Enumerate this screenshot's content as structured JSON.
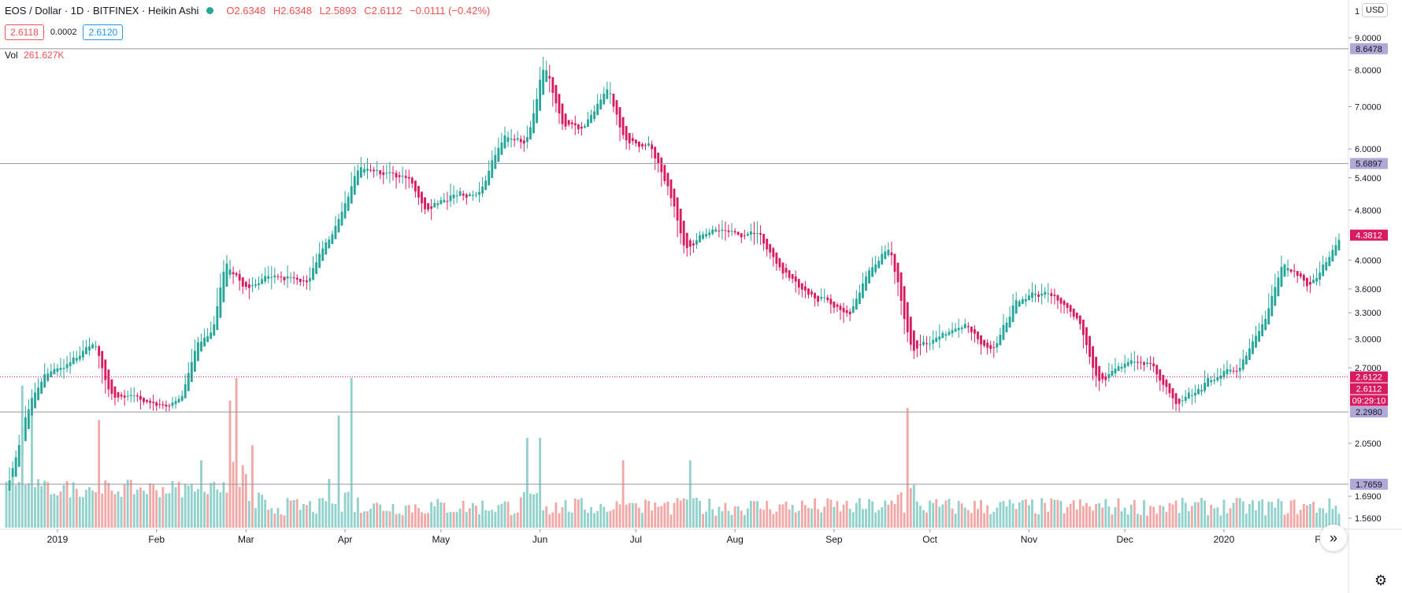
{
  "legend": {
    "symbol": "EOS / Dollar · 1D · BITFINEX · Heikin Ashi",
    "open": "O2.6348",
    "high": "H2.6348",
    "low": "L2.5893",
    "close": "C2.6112",
    "change": "−0.0111 (−0.42%)"
  },
  "price_boxes": {
    "sell": "2.6118",
    "spread": "0.0002",
    "buy": "2.6120"
  },
  "volume_legend": {
    "label": "Vol",
    "value": "261.627K"
  },
  "currency_button": "USD",
  "scroll_icon": "»",
  "settings_icon": "⚙",
  "colors": {
    "up": "#26a69a",
    "down": "#d81b60",
    "vol_up": "#93d2cc",
    "vol_down": "#f0a9a6",
    "level_badge": "#b2a8d8",
    "current_badge": "#d81b60"
  },
  "chart_data": {
    "type": "candlestick",
    "chart_style": "Heikin Ashi",
    "y_scale": "log",
    "ylim": [
      1.5,
      10.0
    ],
    "y_ticks": [
      {
        "value": 9.0,
        "label": "9.0000"
      },
      {
        "value": 8.0,
        "label": "8.0000"
      },
      {
        "value": 7.0,
        "label": "7.0000"
      },
      {
        "value": 6.0,
        "label": "6.0000"
      },
      {
        "value": 5.4,
        "label": "5.4000"
      },
      {
        "value": 4.8,
        "label": "4.8000"
      },
      {
        "value": 4.0,
        "label": "4.0000"
      },
      {
        "value": 3.6,
        "label": "3.6000"
      },
      {
        "value": 3.3,
        "label": "3.3000"
      },
      {
        "value": 3.0,
        "label": "3.0000"
      },
      {
        "value": 2.7,
        "label": "2.7000"
      },
      {
        "value": 2.05,
        "label": "2.0500"
      },
      {
        "value": 1.69,
        "label": "1.6900"
      },
      {
        "value": 1.56,
        "label": "1.5600"
      }
    ],
    "x_ticks": [
      {
        "date": "2019-01-01",
        "label": "2019"
      },
      {
        "date": "2019-02-01",
        "label": "Feb"
      },
      {
        "date": "2019-03-01",
        "label": "Mar"
      },
      {
        "date": "2019-04-01",
        "label": "Apr"
      },
      {
        "date": "2019-05-01",
        "label": "May"
      },
      {
        "date": "2019-06-01",
        "label": "Jun"
      },
      {
        "date": "2019-07-01",
        "label": "Jul"
      },
      {
        "date": "2019-08-01",
        "label": "Aug"
      },
      {
        "date": "2019-09-01",
        "label": "Sep"
      },
      {
        "date": "2019-10-01",
        "label": "Oct"
      },
      {
        "date": "2019-11-01",
        "label": "Nov"
      },
      {
        "date": "2019-12-01",
        "label": "Dec"
      },
      {
        "date": "2020-01-01",
        "label": "2020"
      },
      {
        "date": "2020-02-01",
        "label": "Feb"
      }
    ],
    "date_range": [
      "2018-12-16",
      "2020-02-06"
    ],
    "horizontal_levels": [
      {
        "value": 8.6478,
        "label": "8.6478"
      },
      {
        "value": 5.6897,
        "label": "5.6897"
      },
      {
        "value": 2.298,
        "label": "2.2980"
      },
      {
        "value": 1.7659,
        "label": "1.7659"
      }
    ],
    "current_price": {
      "value": 2.6122,
      "label": "2.6122",
      "style": "dotted"
    },
    "badges": [
      {
        "value": 4.3812,
        "label": "4.3812"
      },
      {
        "value": 2.6112,
        "label": "2.6112"
      }
    ],
    "countdown": "09:29:10",
    "anchor_prices": [
      {
        "date": "2018-12-16",
        "price": 1.75
      },
      {
        "date": "2018-12-22",
        "price": 2.3
      },
      {
        "date": "2018-12-28",
        "price": 2.65
      },
      {
        "date": "2019-01-05",
        "price": 2.75
      },
      {
        "date": "2019-01-12",
        "price": 2.95
      },
      {
        "date": "2019-01-17",
        "price": 2.45
      },
      {
        "date": "2019-01-25",
        "price": 2.42
      },
      {
        "date": "2019-02-02",
        "price": 2.35
      },
      {
        "date": "2019-02-08",
        "price": 2.4
      },
      {
        "date": "2019-02-13",
        "price": 2.95
      },
      {
        "date": "2019-02-18",
        "price": 3.05
      },
      {
        "date": "2019-02-22",
        "price": 3.95
      },
      {
        "date": "2019-02-28",
        "price": 3.6
      },
      {
        "date": "2019-03-10",
        "price": 3.8
      },
      {
        "date": "2019-03-20",
        "price": 3.7
      },
      {
        "date": "2019-03-28",
        "price": 4.5
      },
      {
        "date": "2019-04-05",
        "price": 5.6
      },
      {
        "date": "2019-04-12",
        "price": 5.5
      },
      {
        "date": "2019-04-20",
        "price": 5.4
      },
      {
        "date": "2019-04-26",
        "price": 4.8
      },
      {
        "date": "2019-05-05",
        "price": 5.1
      },
      {
        "date": "2019-05-12",
        "price": 5.0
      },
      {
        "date": "2019-05-20",
        "price": 6.3
      },
      {
        "date": "2019-05-27",
        "price": 6.1
      },
      {
        "date": "2019-06-02",
        "price": 8.1
      },
      {
        "date": "2019-06-08",
        "price": 6.5
      },
      {
        "date": "2019-06-14",
        "price": 6.5
      },
      {
        "date": "2019-06-22",
        "price": 7.5
      },
      {
        "date": "2019-06-27",
        "price": 6.2
      },
      {
        "date": "2019-07-05",
        "price": 6.0
      },
      {
        "date": "2019-07-10",
        "price": 5.3
      },
      {
        "date": "2019-07-16",
        "price": 4.2
      },
      {
        "date": "2019-07-24",
        "price": 4.5
      },
      {
        "date": "2019-07-30",
        "price": 4.4
      },
      {
        "date": "2019-08-08",
        "price": 4.4
      },
      {
        "date": "2019-08-16",
        "price": 3.8
      },
      {
        "date": "2019-08-26",
        "price": 3.5
      },
      {
        "date": "2019-09-05",
        "price": 3.25
      },
      {
        "date": "2019-09-11",
        "price": 3.8
      },
      {
        "date": "2019-09-18",
        "price": 4.15
      },
      {
        "date": "2019-09-25",
        "price": 2.85
      },
      {
        "date": "2019-10-02",
        "price": 3.0
      },
      {
        "date": "2019-10-12",
        "price": 3.15
      },
      {
        "date": "2019-10-20",
        "price": 2.85
      },
      {
        "date": "2019-10-28",
        "price": 3.5
      },
      {
        "date": "2019-11-08",
        "price": 3.55
      },
      {
        "date": "2019-11-16",
        "price": 3.2
      },
      {
        "date": "2019-11-22",
        "price": 2.55
      },
      {
        "date": "2019-11-30",
        "price": 2.75
      },
      {
        "date": "2019-12-08",
        "price": 2.75
      },
      {
        "date": "2019-12-17",
        "price": 2.35
      },
      {
        "date": "2019-12-28",
        "price": 2.6
      },
      {
        "date": "2020-01-05",
        "price": 2.7
      },
      {
        "date": "2020-01-14",
        "price": 3.3
      },
      {
        "date": "2020-01-19",
        "price": 3.95
      },
      {
        "date": "2020-01-27",
        "price": 3.6
      },
      {
        "date": "2020-02-06",
        "price": 4.35
      }
    ],
    "volume_spikes": [
      {
        "date": "2018-12-21",
        "level": 0.95
      },
      {
        "date": "2018-12-24",
        "level": 0.75
      },
      {
        "date": "2019-01-14",
        "level": 0.72
      },
      {
        "date": "2019-02-15",
        "level": 0.45
      },
      {
        "date": "2019-02-24",
        "level": 0.85
      },
      {
        "date": "2019-02-26",
        "level": 1.0
      },
      {
        "date": "2019-03-03",
        "level": 0.55
      },
      {
        "date": "2019-03-30",
        "level": 0.75
      },
      {
        "date": "2019-04-03",
        "level": 1.0
      },
      {
        "date": "2019-05-28",
        "level": 0.6
      },
      {
        "date": "2019-06-01",
        "level": 0.6
      },
      {
        "date": "2019-06-27",
        "level": 0.45
      },
      {
        "date": "2019-07-18",
        "level": 0.45
      },
      {
        "date": "2019-09-24",
        "level": 0.8
      }
    ]
  }
}
